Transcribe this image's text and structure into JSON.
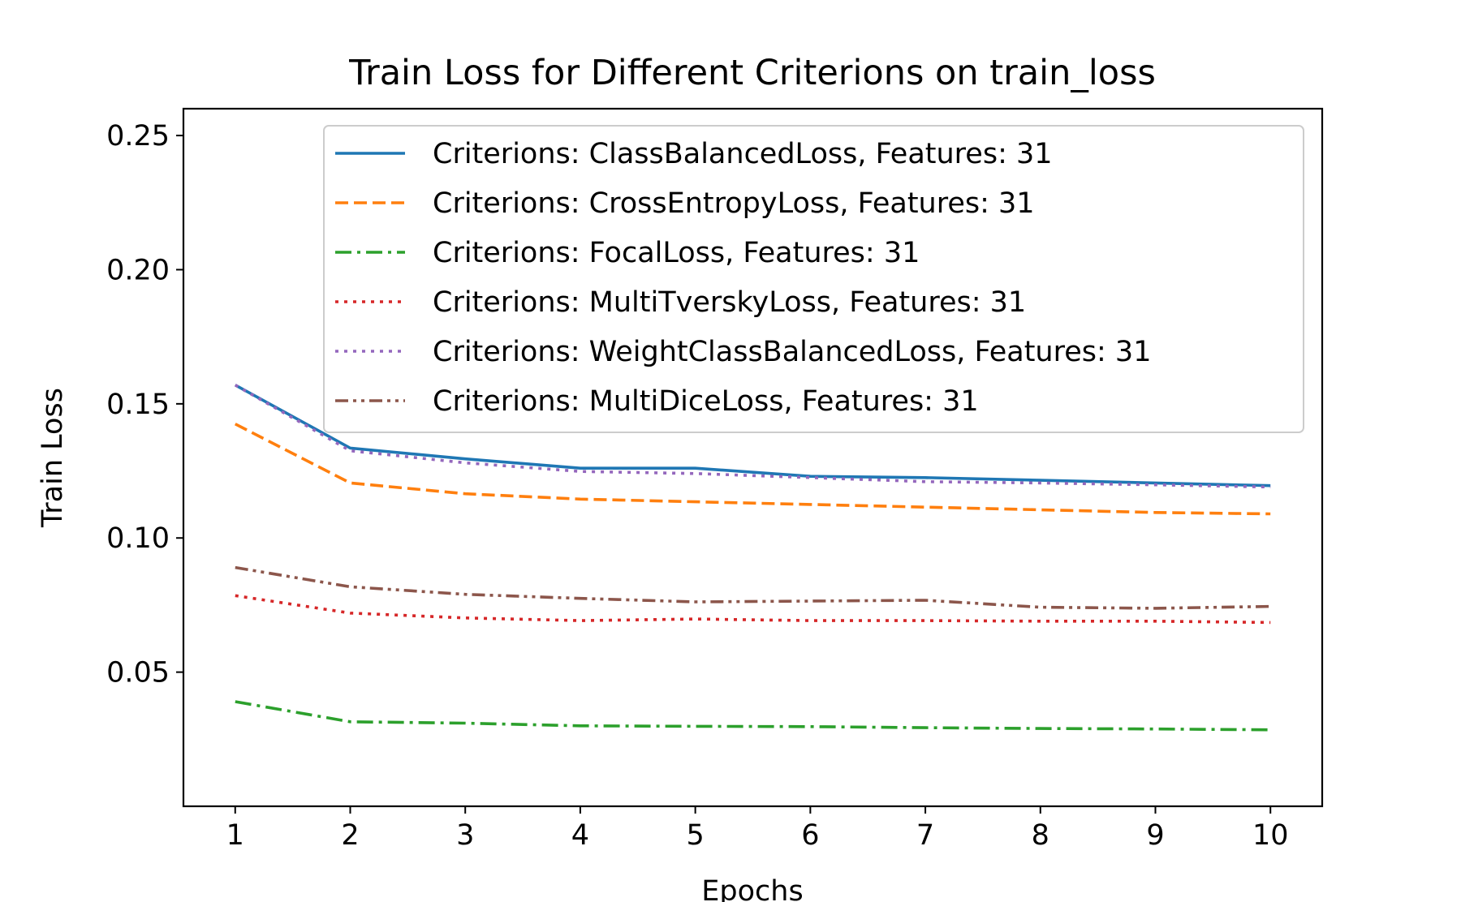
{
  "chart_data": {
    "type": "line",
    "title": "Train Loss for Different Criterions on train_loss",
    "xlabel": "Epochs",
    "ylabel": "Train Loss",
    "x": [
      1,
      2,
      3,
      4,
      5,
      6,
      7,
      8,
      9,
      10
    ],
    "xlim": [
      0.55,
      10.45
    ],
    "ylim": [
      0.0,
      0.26
    ],
    "yticks": [
      "0.05",
      "0.10",
      "0.15",
      "0.20",
      "0.25"
    ],
    "xticks": [
      "1",
      "2",
      "3",
      "4",
      "5",
      "6",
      "7",
      "8",
      "9",
      "10"
    ],
    "grid": false,
    "legend_position": "top-right",
    "series": [
      {
        "name": "Criterions: ClassBalancedLoss, Features: 31",
        "color": "#1f77b4",
        "style": "solid",
        "values": [
          0.157,
          0.1335,
          0.1295,
          0.126,
          0.126,
          0.123,
          0.1225,
          0.1215,
          0.1205,
          0.1195
        ]
      },
      {
        "name": "Criterions: CrossEntropyLoss, Features: 31",
        "color": "#ff7f0e",
        "style": "dashed",
        "values": [
          0.1425,
          0.1205,
          0.1165,
          0.1145,
          0.1135,
          0.1125,
          0.1115,
          0.1105,
          0.1095,
          0.109
        ]
      },
      {
        "name": "Criterions: FocalLoss, Features: 31",
        "color": "#2ca02c",
        "style": "dashdot",
        "values": [
          0.039,
          0.0315,
          0.031,
          0.03,
          0.0298,
          0.0297,
          0.0293,
          0.029,
          0.0288,
          0.0285
        ]
      },
      {
        "name": "Criterions: MultiTverskyLoss, Features: 31",
        "color": "#d62728",
        "style": "dotted",
        "values": [
          0.0785,
          0.072,
          0.0702,
          0.0692,
          0.0698,
          0.0692,
          0.0692,
          0.069,
          0.069,
          0.0685
        ]
      },
      {
        "name": "Criterions: WeightClassBalancedLoss, Features: 31",
        "color": "#9467bd",
        "style": "dotted",
        "values": [
          0.157,
          0.1325,
          0.128,
          0.1248,
          0.124,
          0.1225,
          0.121,
          0.1205,
          0.1198,
          0.119
        ]
      },
      {
        "name": "Criterions: MultiDiceLoss, Features: 31",
        "color": "#8c564b",
        "style": "dashdotdot",
        "values": [
          0.089,
          0.0818,
          0.079,
          0.0775,
          0.0762,
          0.0765,
          0.0768,
          0.0742,
          0.0738,
          0.0745
        ]
      }
    ]
  }
}
